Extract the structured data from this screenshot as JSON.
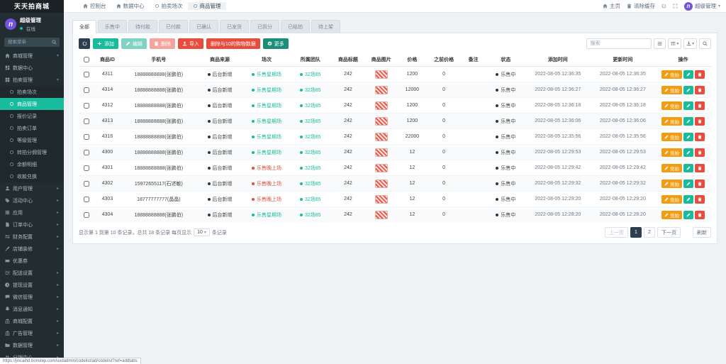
{
  "colors": {
    "accent": "#18bc9c",
    "danger": "#e74c3c",
    "warning": "#f39c12",
    "dark": "#2c3e50",
    "sidebar_bg": "#222d32",
    "avatar": "#7352e0"
  },
  "sidebar": {
    "logo": "天天拍商城",
    "user": {
      "initial": "n",
      "name": "超级管理",
      "status": "在线"
    },
    "search_placeholder": "搜索菜单",
    "items": [
      {
        "label": "商城管理",
        "icon": "home",
        "caret": "down"
      },
      {
        "label": "数据中心",
        "icon": "dashboard"
      },
      {
        "label": "拍卖管理",
        "icon": "grid",
        "caret": "down"
      },
      {
        "label": "拍卖场次",
        "icon": "circle",
        "child": true
      },
      {
        "label": "商品管理",
        "icon": "circle",
        "child": true,
        "active": true
      },
      {
        "label": "报价记录",
        "icon": "circle",
        "child": true
      },
      {
        "label": "拍卖订单",
        "icon": "circle",
        "child": true
      },
      {
        "label": "等级管理",
        "icon": "circle",
        "child": true
      },
      {
        "label": "转拍分佣管理",
        "icon": "circle",
        "child": true
      },
      {
        "label": "余额明细",
        "icon": "circle",
        "child": true
      },
      {
        "label": "收款兑换",
        "icon": "circle",
        "child": true
      },
      {
        "label": "用户管理",
        "icon": "user",
        "caret": "right"
      },
      {
        "label": "活动中心",
        "icon": "tag",
        "caret": "right"
      },
      {
        "label": "应用",
        "icon": "app",
        "caret": "right"
      },
      {
        "label": "订单中心",
        "icon": "file",
        "caret": "right"
      },
      {
        "label": "财务配置",
        "icon": "exchange",
        "caret": "right"
      },
      {
        "label": "店铺装修",
        "icon": "brush",
        "caret": "right"
      },
      {
        "label": "优惠券",
        "icon": "ticket"
      },
      {
        "label": "配送设置",
        "icon": "sliders",
        "caret": "right"
      },
      {
        "label": "提现设置",
        "icon": "clock",
        "caret": "right"
      },
      {
        "label": "微信管理",
        "icon": "comment",
        "caret": "right"
      },
      {
        "label": "消息通知",
        "icon": "bell",
        "caret": "right"
      },
      {
        "label": "商城配置",
        "icon": "store",
        "caret": "right"
      },
      {
        "label": "广告管理",
        "icon": "bank",
        "caret": "right"
      },
      {
        "label": "数据管理",
        "icon": "folder",
        "caret": "right"
      },
      {
        "label": "分销中心",
        "icon": "users",
        "caret": "right"
      }
    ]
  },
  "topnav": {
    "items": [
      {
        "label": "控制台",
        "icon": "home"
      },
      {
        "label": "数据中心",
        "icon": "home"
      },
      {
        "label": "拍卖场次",
        "icon": "circle"
      },
      {
        "label": "商品管理",
        "icon": "circle",
        "active": true
      }
    ]
  },
  "topbar_right": {
    "home": "主页",
    "clear_cache": "清除缓存",
    "user": "超级管理"
  },
  "tabs": {
    "active": 0,
    "items": [
      "全部",
      "乐售中",
      "待付款",
      "已付款",
      "已确认",
      "已发货",
      "已拆分",
      "已结拍",
      "待上架"
    ]
  },
  "toolbar": {
    "add": "添加",
    "edit": "编辑",
    "delete": "删除",
    "import": "导入",
    "special": "删除与10的购物数据",
    "more": "更多",
    "search_placeholder": "搜索"
  },
  "table": {
    "columns": [
      "",
      "商品ID",
      "手机号",
      "商品来源",
      "场次",
      "所属团队",
      "商品标题",
      "商品图片",
      "价格",
      "之前价格",
      "备注",
      "状态",
      "添加时间",
      "更新时间",
      "操作"
    ],
    "source_label": "后台新增",
    "team_label": "32场85",
    "status_label": "乐售中",
    "session_green": "乐售星期场",
    "session_red": "乐售晚上场",
    "actions": {
      "bid": "竞拍"
    },
    "rows": [
      {
        "id": "4311",
        "phone": "18888888888(张鹏伯)",
        "session": "green",
        "title": "242",
        "price": "1200",
        "prev": "0",
        "remark": "",
        "time": "2022-08-05 12:36:35"
      },
      {
        "id": "4314",
        "phone": "18888888888(张鹏伯)",
        "session": "green",
        "title": "242",
        "price": "12000",
        "prev": "0",
        "remark": "",
        "time": "2022-08-05 12:36:27"
      },
      {
        "id": "4312",
        "phone": "18888888888(张鹏伯)",
        "session": "green",
        "title": "242",
        "price": "1200",
        "prev": "0",
        "remark": "",
        "time": "2022-08-05 12:36:18"
      },
      {
        "id": "4313",
        "phone": "18888888888(张鹏伯)",
        "session": "green",
        "title": "242",
        "price": "1200",
        "prev": "0",
        "remark": "",
        "time": "2022-08-05 12:36:06"
      },
      {
        "id": "4316",
        "phone": "18888888888(张鹏伯)",
        "session": "green",
        "title": "242",
        "price": "22000",
        "prev": "0",
        "remark": "",
        "time": "2022-08-05 12:35:56"
      },
      {
        "id": "4300",
        "phone": "18888888888(张鹏伯)",
        "session": "green",
        "title": "242",
        "price": "12",
        "prev": "0",
        "remark": "",
        "time": "2022-08-05 12:29:53"
      },
      {
        "id": "4301",
        "phone": "18888888888(张鹏伯)",
        "session": "red",
        "title": "242",
        "price": "12",
        "prev": "0",
        "remark": "",
        "time": "2022-08-05 12:29:42"
      },
      {
        "id": "4302",
        "phone": "15972655117(石述敏)",
        "session": "red",
        "title": "242",
        "price": "12",
        "prev": "0",
        "remark": "",
        "time": "2022-08-05 12:29:32"
      },
      {
        "id": "4303",
        "phone": "18777777777(晶晶)",
        "session": "red",
        "title": "242",
        "price": "12",
        "prev": "0",
        "remark": "",
        "time": "2022-08-05 12:29:20"
      },
      {
        "id": "4304",
        "phone": "18888888888(张鹏伯)",
        "session": "green",
        "title": "242",
        "price": "12",
        "prev": "0",
        "remark": "",
        "time": "2022-08-05 12:28:20"
      }
    ]
  },
  "footer": {
    "info_prefix": "显示第 1 到第 10 条记录，总共 18 条记录 每页显示",
    "page_size": "10",
    "info_suffix": "条记录",
    "prev": "上一页",
    "next": "下一页",
    "pages": [
      "1",
      "2"
    ],
    "active_page": "1",
    "refresh": "刷新"
  },
  "statusbar": {
    "url": "https://jincaihd.bonstep.com/uxdadmin/codelist/ad/codelist?ref=addtabs"
  }
}
